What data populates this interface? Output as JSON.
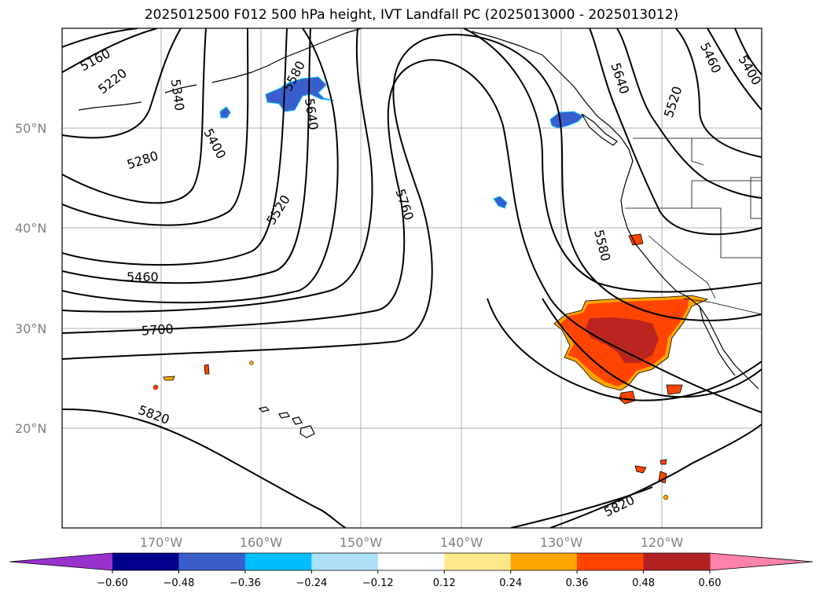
{
  "title": "2025012500 F012 500 hPa height, IVT Landfall PC (2025013000 - 2025013012)",
  "lat_labels": [
    "50°N",
    "40°N",
    "30°N",
    "20°N"
  ],
  "lon_labels": [
    "170°W",
    "160°W",
    "150°W",
    "140°W",
    "130°W",
    "120°W"
  ],
  "contour_labels": [
    "5160",
    "5220",
    "5340",
    "5580",
    "5640",
    "5280",
    "5400",
    "5520",
    "5760",
    "5460",
    "5700",
    "5820",
    "5640",
    "5460",
    "5400",
    "5520",
    "5580",
    "5820"
  ],
  "colorbar": {
    "ticks": [
      "−0.60",
      "−0.48",
      "−0.36",
      "−0.24",
      "−0.12",
      "0.12",
      "0.24",
      "0.36",
      "0.48",
      "0.60"
    ],
    "colors": [
      "#9932CC",
      "#00008B",
      "#3A5FCD",
      "#00BFFF",
      "#ADE1F9",
      "#FFFFFF",
      "#FFE88A",
      "#FFA500",
      "#FF4500",
      "#B22222",
      "#FF82AB"
    ]
  },
  "colors": {
    "map_border": "#000000",
    "gridline": "#b0b0b0",
    "positive_high": "#B22222",
    "positive_mid": "#FF4500",
    "positive_low": "#FFA500",
    "negative": "#3A5FCD"
  }
}
